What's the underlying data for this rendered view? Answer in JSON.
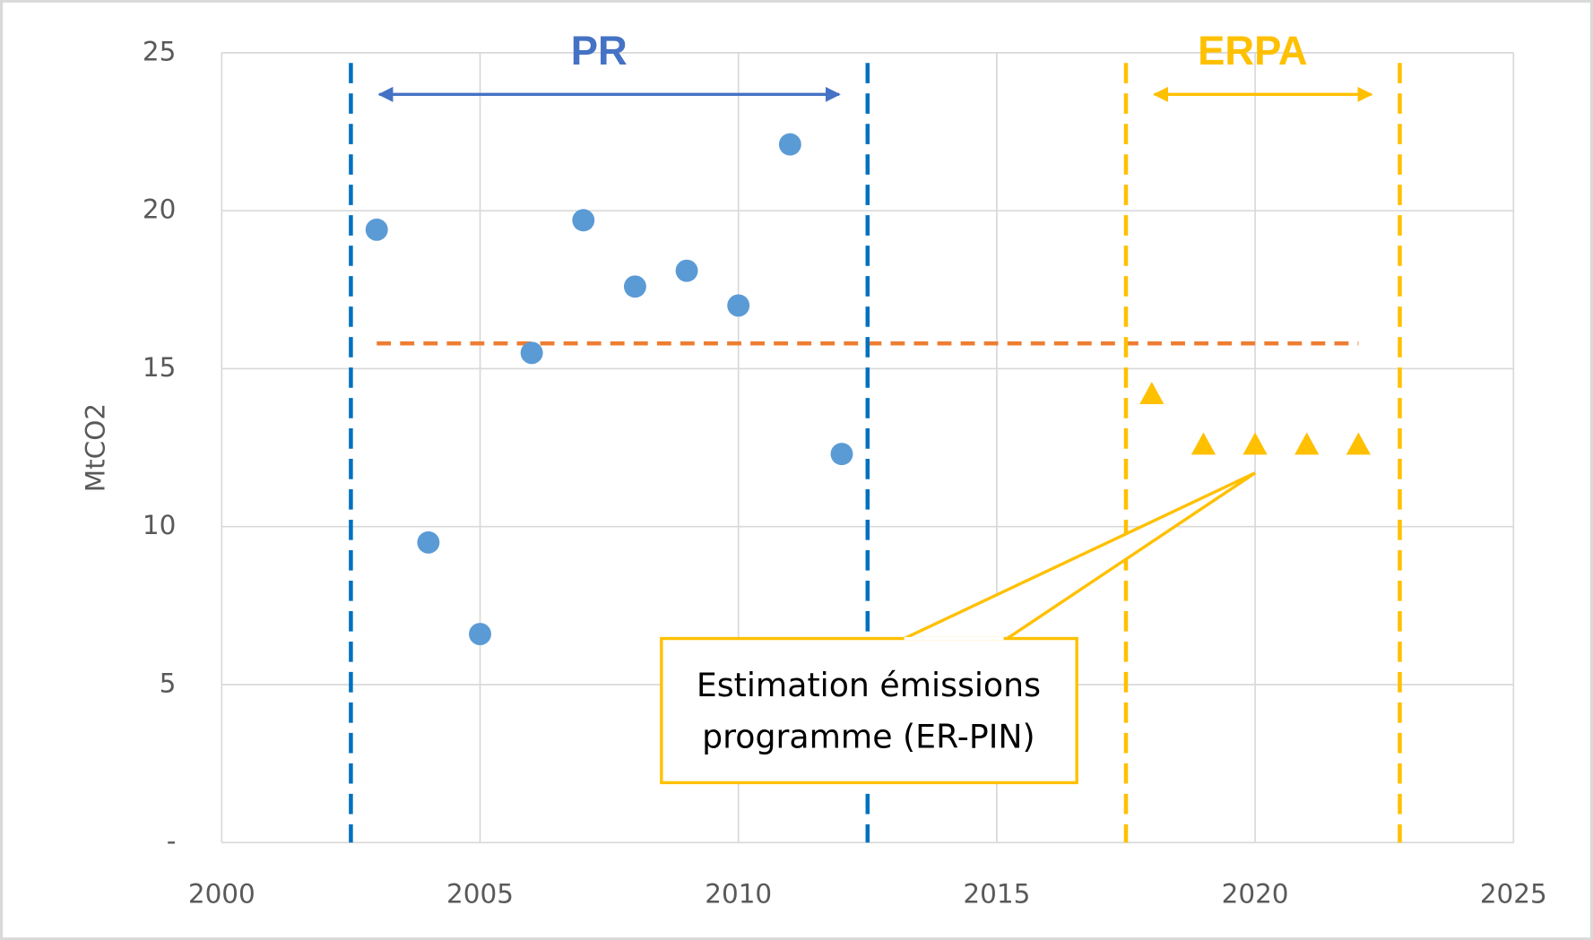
{
  "chart_data": {
    "type": "scatter",
    "y_label": "MtCO2",
    "xlim": [
      2000,
      2025
    ],
    "xticks": [
      2000,
      2005,
      2010,
      2015,
      2020,
      2025
    ],
    "ylim": [
      0,
      25
    ],
    "yticks": [
      {
        "value": 0,
        "label": "-"
      },
      5,
      10,
      15,
      20,
      25
    ],
    "grid": true,
    "series": [
      {
        "marker": "circle",
        "color": "#5b9bd5",
        "x": [
          2003,
          2004,
          2005,
          2006,
          2007,
          2008,
          2009,
          2010,
          2011,
          2012
        ],
        "values": [
          19.4,
          9.5,
          6.6,
          15.5,
          19.7,
          17.6,
          18.1,
          17.0,
          22.1,
          12.3
        ]
      },
      {
        "marker": "triangle",
        "color": "#ffc000",
        "x": [
          2018,
          2019,
          2020,
          2021,
          2022
        ],
        "values": [
          14.2,
          12.6,
          12.6,
          12.6,
          12.6
        ]
      }
    ],
    "reference_line": {
      "x": [
        2003,
        2022
      ],
      "y": 15.8,
      "color": "#ed7d31"
    },
    "periods": [
      {
        "label": "PR",
        "start": 2002.5,
        "end": 2012.5,
        "color": "#0070c0",
        "label_color": "#4472c4"
      },
      {
        "label": "ERPA",
        "start": 2017.5,
        "end": 2022.8,
        "color": "#ffc000",
        "label_color": "#ffc000"
      }
    ],
    "callout": {
      "lines": [
        "Estimation émissions",
        "programme (ER-PIN)"
      ],
      "target_x": 2020,
      "target_y": 11.7,
      "color": "#ffc000"
    }
  }
}
